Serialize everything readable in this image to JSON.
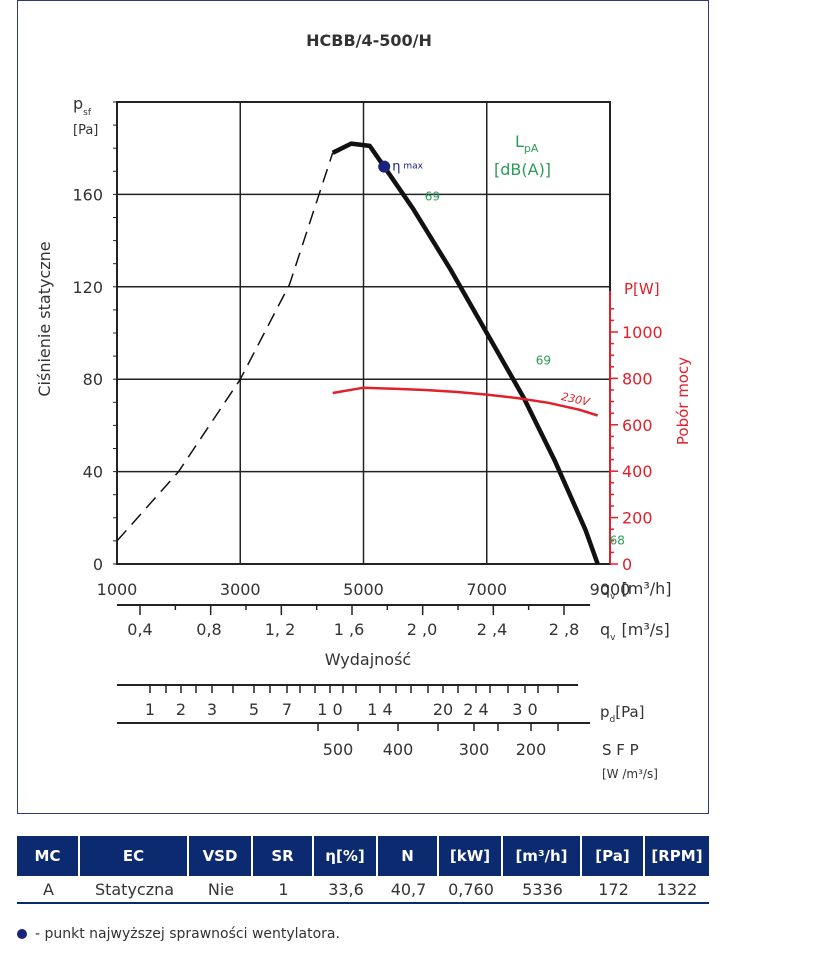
{
  "chart_data": {
    "type": "line",
    "title": "HCBB/4-500/H",
    "ylabel": "Ciśnienie statyczne",
    "y_unit_main": "p",
    "y_unit_sub": "sf",
    "y_unit_bracket": "[Pa]",
    "ylim": [
      0,
      200
    ],
    "y_ticks": [
      0,
      40,
      80,
      120,
      160
    ],
    "xlim": [
      1000,
      9000
    ],
    "x_ticks": [
      1000,
      3000,
      5000,
      7000,
      9000
    ],
    "x_unit_prefix": "q",
    "x_unit_sub": "v",
    "x_unit_m3h": "[m³/h]",
    "x_unit_m3s": "[m³/s]",
    "x_ticks_m3s": [
      "0,4",
      "0,8",
      "1, 2",
      "1 ,6",
      "2 ,0",
      "2 ,4",
      "2 ,8"
    ],
    "xlabel": "Wydajność",
    "pd_ticks": [
      "1",
      "2",
      "3",
      "5",
      "7",
      "1 0",
      "1 4",
      "20",
      "2 4",
      "3 0"
    ],
    "pd_unit": "p",
    "pd_sub": "d",
    "pd_bracket": "[Pa]",
    "sfp_ticks": [
      "500",
      "400",
      "300",
      "200"
    ],
    "sfp_label": "S F P",
    "sfp_unit": "[W /m³/s]",
    "right_axis_label": "Pobór mocy",
    "right_axis_unit": "P[W]",
    "right_ylim": [
      0,
      1000
    ],
    "right_ticks": [
      0,
      200,
      400,
      600,
      800,
      1000
    ],
    "lpa_label": "L",
    "lpa_sub": "pA",
    "lpa_unit": "[dB(A)]",
    "eta_label": "η",
    "eta_sup": "max",
    "power_curve_label": "230V",
    "series": [
      {
        "style": "dashed",
        "points": [
          [
            1000,
            10
          ],
          [
            2000,
            40
          ],
          [
            3000,
            80
          ],
          [
            3800,
            121
          ],
          [
            4500,
            178
          ]
        ]
      },
      {
        "style": "solid",
        "points": [
          [
            4500,
            178
          ],
          [
            4800,
            182
          ],
          [
            5100,
            181
          ],
          [
            5336,
            172
          ],
          [
            5800,
            154
          ],
          [
            6400,
            128
          ],
          [
            7000,
            100
          ],
          [
            7600,
            72
          ],
          [
            8100,
            45
          ],
          [
            8600,
            15
          ],
          [
            8800,
            0
          ]
        ]
      }
    ],
    "power_series": {
      "name": "230V",
      "points": [
        [
          4500,
          737
        ],
        [
          5000,
          760
        ],
        [
          5500,
          755
        ],
        [
          6000,
          750
        ],
        [
          6500,
          742
        ],
        [
          7000,
          730
        ],
        [
          7500,
          715
        ],
        [
          8000,
          695
        ],
        [
          8500,
          665
        ],
        [
          8800,
          640
        ]
      ]
    },
    "eta_max_point": [
      5336,
      172
    ],
    "noise_labels": [
      {
        "x": 5800,
        "y": 154,
        "text": "69"
      },
      {
        "x": 7600,
        "y": 83,
        "text": "69"
      },
      {
        "x": 8800,
        "y": 5,
        "text": "68"
      }
    ]
  },
  "table": {
    "headers": [
      "MC",
      "EC",
      "VSD",
      "SR",
      "η[%]",
      "N",
      "[kW]",
      "[m³/h]",
      "[Pa]",
      "[RPM]"
    ],
    "row": [
      "A",
      "Statyczna",
      "Nie",
      "1",
      "33,6",
      "40,7",
      "0,760",
      "5336",
      "172",
      "1322"
    ]
  },
  "legend_note": "- punkt najwyższej sprawności wentylatora.",
  "colors": {
    "frame": "#2a3a7a",
    "header_bg": "#0c2a6f",
    "power": "#e0202a",
    "noise": "#2e9a5a",
    "eta": "#1a237e"
  }
}
